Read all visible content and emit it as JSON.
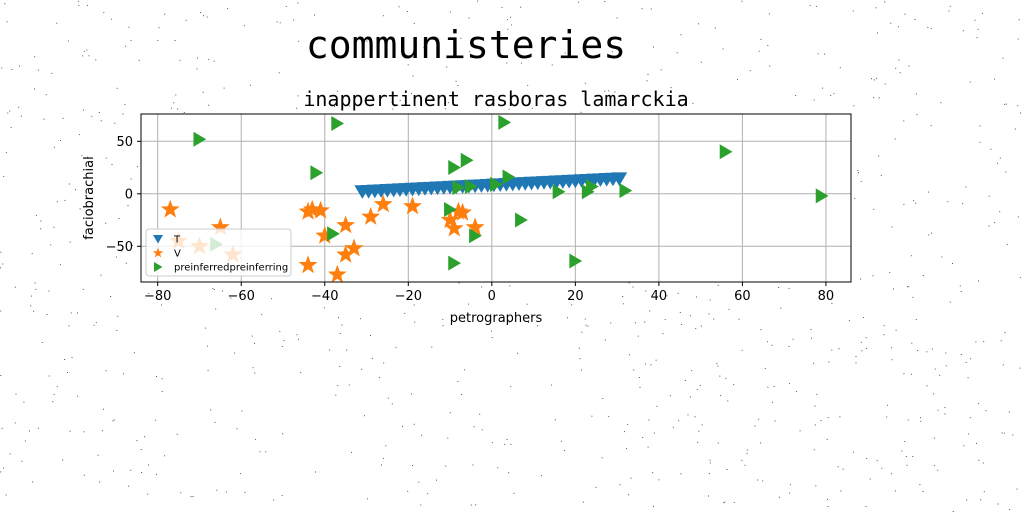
{
  "figure": {
    "suptitle": "communisteries"
  },
  "chart_data": {
    "type": "scatter",
    "title": "inappertinent rasboras lamarckia",
    "xlabel": "petrographers",
    "ylabel": "faciobrachial",
    "xlim": [
      -84,
      86
    ],
    "ylim": [
      -84,
      76
    ],
    "xticks": [
      -80,
      -60,
      -40,
      -20,
      0,
      20,
      40,
      60,
      80
    ],
    "yticks": [
      -50,
      0,
      50
    ],
    "grid": true,
    "legend_position": "lower-left",
    "series": [
      {
        "name": "T",
        "marker": "triangle-down",
        "color": "#1f77b4",
        "x": [
          -31,
          -29.5,
          -28,
          -26.5,
          -25,
          -23.5,
          -22,
          -20.5,
          -19,
          -17.5,
          -16,
          -14.5,
          -13,
          -11.5,
          -10,
          -8.5,
          -7,
          -5.5,
          -4,
          -2.5,
          -1,
          0.5,
          2,
          3.5,
          5,
          6.5,
          8,
          9.5,
          11,
          12.5,
          14,
          15.5,
          17,
          18.5,
          20,
          21.5,
          23,
          24.5,
          26,
          27.5,
          29,
          30.5
        ],
        "y": [
          2,
          2.3,
          2.6,
          2.9,
          3.2,
          3.5,
          3.8,
          4.1,
          4.4,
          4.7,
          5,
          5.3,
          5.6,
          5.9,
          6.2,
          6.5,
          6.8,
          7.1,
          7.4,
          7.7,
          8,
          8.3,
          8.6,
          8.9,
          9.2,
          9.5,
          9.8,
          10.1,
          10.4,
          10.7,
          11,
          11.3,
          11.6,
          11.9,
          12.2,
          12.5,
          12.8,
          13.1,
          13.4,
          13.7,
          14,
          14.3
        ]
      },
      {
        "name": "V",
        "marker": "star",
        "color": "#ff7f0e",
        "x": [
          -77,
          -75,
          -70,
          -65,
          -62,
          -44,
          -43,
          -41,
          -44,
          -40,
          -37,
          -35,
          -35,
          -33,
          -29,
          -26,
          -19,
          -10,
          -9,
          -8,
          -7,
          -4
        ],
        "y": [
          -15,
          -45,
          -50,
          -32,
          -58,
          -17,
          -15,
          -16,
          -68,
          -40,
          -77,
          -30,
          -58,
          -52,
          -22,
          -10,
          -12,
          -25,
          -33,
          -17,
          -18,
          -32
        ]
      },
      {
        "name": "preinferredpreinferring",
        "marker": "triangle-right",
        "color": "#2ca02c",
        "x": [
          -70,
          -66,
          -42,
          -38,
          -37,
          -10,
          -9,
          -9,
          -8,
          -6,
          -5,
          -4,
          1,
          4,
          7,
          3,
          16,
          20,
          23,
          24,
          32,
          56,
          79
        ],
        "y": [
          52,
          -48,
          20,
          -38,
          67,
          -15,
          -66,
          25,
          6,
          32,
          7,
          -40,
          9,
          16,
          -25,
          68,
          2,
          -64,
          2,
          7,
          3,
          40,
          -2
        ]
      }
    ]
  }
}
